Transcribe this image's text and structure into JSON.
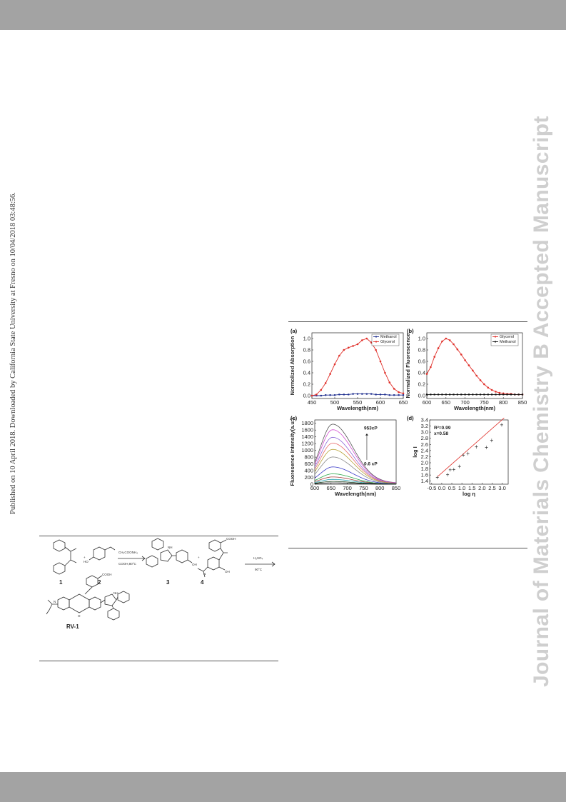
{
  "side_note": "Published on 10 April 2018. Downloaded by California State University at Fresno on 10/04/2018 03:48:56.",
  "watermark": "Journal of Materials Chemistry B Accepted Manuscript",
  "colors": {
    "methanol": "#1f2f8f",
    "glycerol": "#e0302a",
    "band": "#a3a3a3",
    "watermark": "#cfcfcf"
  },
  "figure": {
    "panels": {
      "a": "(a)",
      "b": "(b)",
      "c": "(c)",
      "d": "(d)"
    },
    "annotations": {
      "high_visc": "953cP",
      "low_visc": "0.6 cP",
      "r2": "R²=0.99",
      "x": "x=0.58"
    },
    "axis_labels": {
      "a_x": "Wavelength(nm)",
      "a_y": "Normolized Absorption",
      "b_x": "Wavelength(nm)",
      "b_y": "Normalized Fluorescence",
      "c_x": "Wavelength(nm)",
      "c_y": "Fluoresence Intensity(a.u.)",
      "d_x": "log η",
      "d_y": "log I"
    }
  },
  "chart_data": [
    {
      "type": "line",
      "title": "(a)",
      "xlabel": "Wavelength(nm)",
      "ylabel": "Normolized Absorption",
      "xlim": [
        450,
        650
      ],
      "ylim": [
        -0.05,
        1.1
      ],
      "xticks": [
        450,
        500,
        550,
        600,
        650
      ],
      "yticks": [
        "0.0",
        "0.2",
        "0.4",
        "0.6",
        "0.8",
        "1.0"
      ],
      "legend_position": "top-right",
      "x": [
        450,
        460,
        470,
        480,
        490,
        500,
        510,
        520,
        530,
        540,
        550,
        560,
        570,
        580,
        590,
        600,
        610,
        620,
        630,
        640,
        650
      ],
      "series": [
        {
          "name": "Methanol",
          "color": "#1f2f8f",
          "values": [
            0.0,
            0.0,
            0.0,
            0.01,
            0.01,
            0.01,
            0.02,
            0.02,
            0.02,
            0.03,
            0.03,
            0.03,
            0.03,
            0.03,
            0.02,
            0.02,
            0.02,
            0.01,
            0.01,
            0.01,
            0.01
          ]
        },
        {
          "name": "Glycerol",
          "color": "#e0302a",
          "values": [
            0.0,
            0.02,
            0.1,
            0.22,
            0.38,
            0.55,
            0.7,
            0.8,
            0.84,
            0.87,
            0.9,
            0.97,
            1.0,
            0.93,
            0.8,
            0.6,
            0.4,
            0.23,
            0.12,
            0.06,
            0.04
          ]
        }
      ]
    },
    {
      "type": "line",
      "title": "(b)",
      "xlabel": "Wavelength(nm)",
      "ylabel": "Normalized Fluorescence",
      "xlim": [
        600,
        850
      ],
      "ylim": [
        -0.05,
        1.1
      ],
      "xticks": [
        600,
        650,
        700,
        750,
        800,
        850
      ],
      "yticks": [
        "0.0",
        "0.2",
        "0.4",
        "0.6",
        "0.8",
        "1.0"
      ],
      "legend_position": "top-right",
      "x": [
        600,
        610,
        620,
        630,
        640,
        650,
        660,
        670,
        680,
        690,
        700,
        710,
        720,
        730,
        740,
        750,
        760,
        770,
        780,
        790,
        800,
        810,
        820,
        830,
        840,
        850
      ],
      "series": [
        {
          "name": "Glycerol",
          "color": "#e0302a",
          "values": [
            0.38,
            0.5,
            0.68,
            0.83,
            0.95,
            1.0,
            0.97,
            0.9,
            0.81,
            0.72,
            0.62,
            0.53,
            0.44,
            0.35,
            0.27,
            0.2,
            0.14,
            0.1,
            0.07,
            0.05,
            0.04,
            0.03,
            0.03,
            0.02,
            0.02,
            0.02
          ]
        },
        {
          "name": "Methanol",
          "color": "#111111",
          "values": [
            0.02,
            0.02,
            0.02,
            0.02,
            0.02,
            0.02,
            0.02,
            0.02,
            0.02,
            0.02,
            0.02,
            0.02,
            0.02,
            0.02,
            0.02,
            0.02,
            0.02,
            0.02,
            0.02,
            0.02,
            0.02,
            0.02,
            0.02,
            0.02,
            0.02,
            0.02
          ]
        }
      ]
    },
    {
      "type": "line",
      "title": "(c)",
      "xlabel": "Wavelength(nm)",
      "ylabel": "Fluoresence Intensity(a.u.)",
      "xlim": [
        600,
        850
      ],
      "ylim": [
        0,
        1900
      ],
      "xticks": [
        600,
        650,
        700,
        750,
        800,
        850
      ],
      "yticks": [
        0,
        200,
        400,
        600,
        800,
        1000,
        1200,
        1400,
        1600,
        1800
      ],
      "annotations": [
        "953cP",
        "0.6 cP"
      ],
      "peak_nm": 655,
      "series": [
        {
          "peak": 1740,
          "color": "#555555"
        },
        {
          "peak": 1580,
          "color": "#d24fd0"
        },
        {
          "peak": 1360,
          "color": "#8f6ad8"
        },
        {
          "peak": 1190,
          "color": "#e86a6a"
        },
        {
          "peak": 1010,
          "color": "#b8a33a"
        },
        {
          "peak": 790,
          "color": "#8a8a8a"
        },
        {
          "peak": 500,
          "color": "#3a3ac8"
        },
        {
          "peak": 300,
          "color": "#2aa84a"
        },
        {
          "peak": 210,
          "color": "#a23a3a"
        },
        {
          "peak": 140,
          "color": "#1e9eae"
        },
        {
          "peak": 80,
          "color": "#224422"
        },
        {
          "peak": 40,
          "color": "#000000"
        }
      ]
    },
    {
      "type": "scatter",
      "title": "(d)",
      "xlabel": "log η",
      "ylabel": "log I",
      "xlim": [
        -0.6,
        3.3
      ],
      "ylim": [
        1.3,
        3.4
      ],
      "xticks": [
        "-0.5",
        "0.0",
        "0.5",
        "1.0",
        "1.5",
        "2.0",
        "2.5",
        "3.0"
      ],
      "yticks": [
        "1.4",
        "1.6",
        "1.8",
        "2.0",
        "2.2",
        "2.4",
        "2.6",
        "2.8",
        "3.0",
        "3.2",
        "3.4"
      ],
      "annotations": [
        "R²=0.99",
        "x=0.58"
      ],
      "points": [
        [
          -0.22,
          1.52
        ],
        [
          0.29,
          1.61
        ],
        [
          0.42,
          1.77
        ],
        [
          0.6,
          1.78
        ],
        [
          0.88,
          1.88
        ],
        [
          1.07,
          2.25
        ],
        [
          1.3,
          2.3
        ],
        [
          1.72,
          2.52
        ],
        [
          2.22,
          2.5
        ],
        [
          2.48,
          2.73
        ],
        [
          2.98,
          3.24
        ]
      ],
      "fit": {
        "slope": 0.58,
        "x": [
          -0.2,
          3.1
        ]
      }
    }
  ],
  "scheme": {
    "labels": {
      "c1": "1",
      "c2": "2",
      "c3": "3",
      "c4": "4",
      "rv1": "RV-1"
    },
    "reagents1": {
      "top": "CH₃COONH₄",
      "bottom": "COOH,80°C"
    },
    "reagents2": {
      "top": "H₂SO₄",
      "bottom": "90°C"
    },
    "plus": "+",
    "groups": {
      "cooh": "COOH",
      "ho": "HO",
      "oh": "OH",
      "nh": "NH",
      "n": "N",
      "o": "O"
    }
  }
}
